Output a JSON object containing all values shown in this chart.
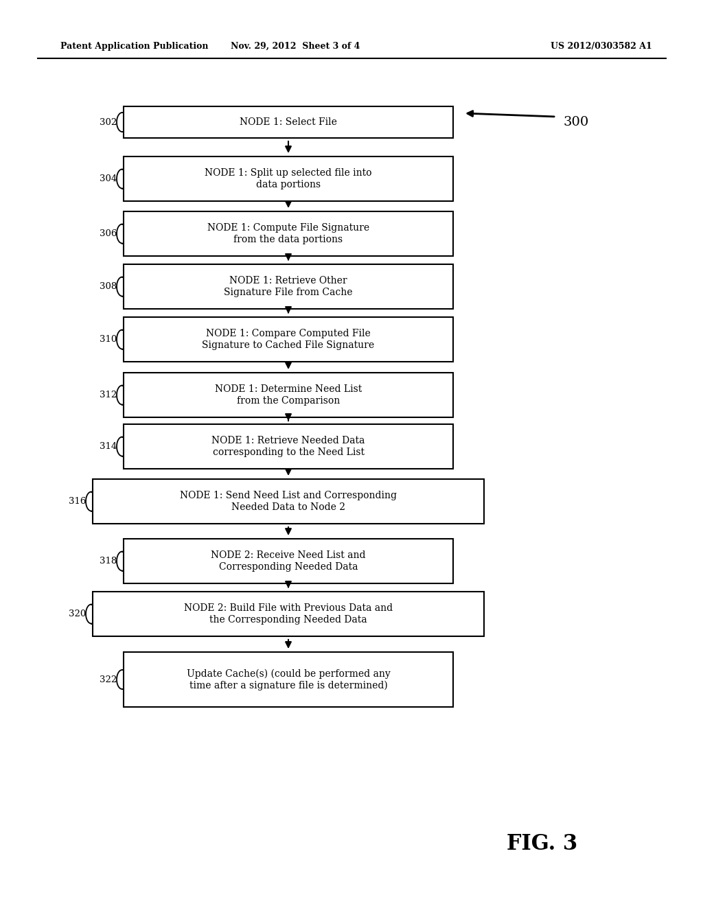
{
  "bg_color": "#ffffff",
  "header_left": "Patent Application Publication",
  "header_center": "Nov. 29, 2012  Sheet 3 of 4",
  "header_right": "US 2012/0303582 A1",
  "figure_label": "FIG. 3",
  "diagram_label": "300",
  "boxes": [
    {
      "id": "302",
      "label": "NODE 1: Select File",
      "lines": 1,
      "wide": false
    },
    {
      "id": "304",
      "label": "NODE 1: Split up selected file into\ndata portions",
      "lines": 2,
      "wide": false
    },
    {
      "id": "306",
      "label": "NODE 1: Compute File Signature\nfrom the data portions",
      "lines": 2,
      "wide": false
    },
    {
      "id": "308",
      "label": "NODE 1: Retrieve Other\nSignature File from Cache",
      "lines": 2,
      "wide": false
    },
    {
      "id": "310",
      "label": "NODE 1: Compare Computed File\nSignature to Cached File Signature",
      "lines": 2,
      "wide": false
    },
    {
      "id": "312",
      "label": "NODE 1: Determine Need List\nfrom the Comparison",
      "lines": 2,
      "wide": false
    },
    {
      "id": "314",
      "label": "NODE 1: Retrieve Needed Data\ncorresponding to the Need List",
      "lines": 2,
      "wide": false
    },
    {
      "id": "316",
      "label": "NODE 1: Send Need List and Corresponding\nNeeded Data to Node 2",
      "lines": 2,
      "wide": true
    },
    {
      "id": "318",
      "label": "NODE 2: Receive Need List and\nCorresponding Needed Data",
      "lines": 2,
      "wide": false
    },
    {
      "id": "320",
      "label": "NODE 2: Build File with Previous Data and\nthe Corresponding Needed Data",
      "lines": 2,
      "wide": true
    },
    {
      "id": "322",
      "label": "Update Cache(s) (could be performed any\ntime after a signature file is determined)",
      "lines": 2,
      "wide": false
    }
  ]
}
